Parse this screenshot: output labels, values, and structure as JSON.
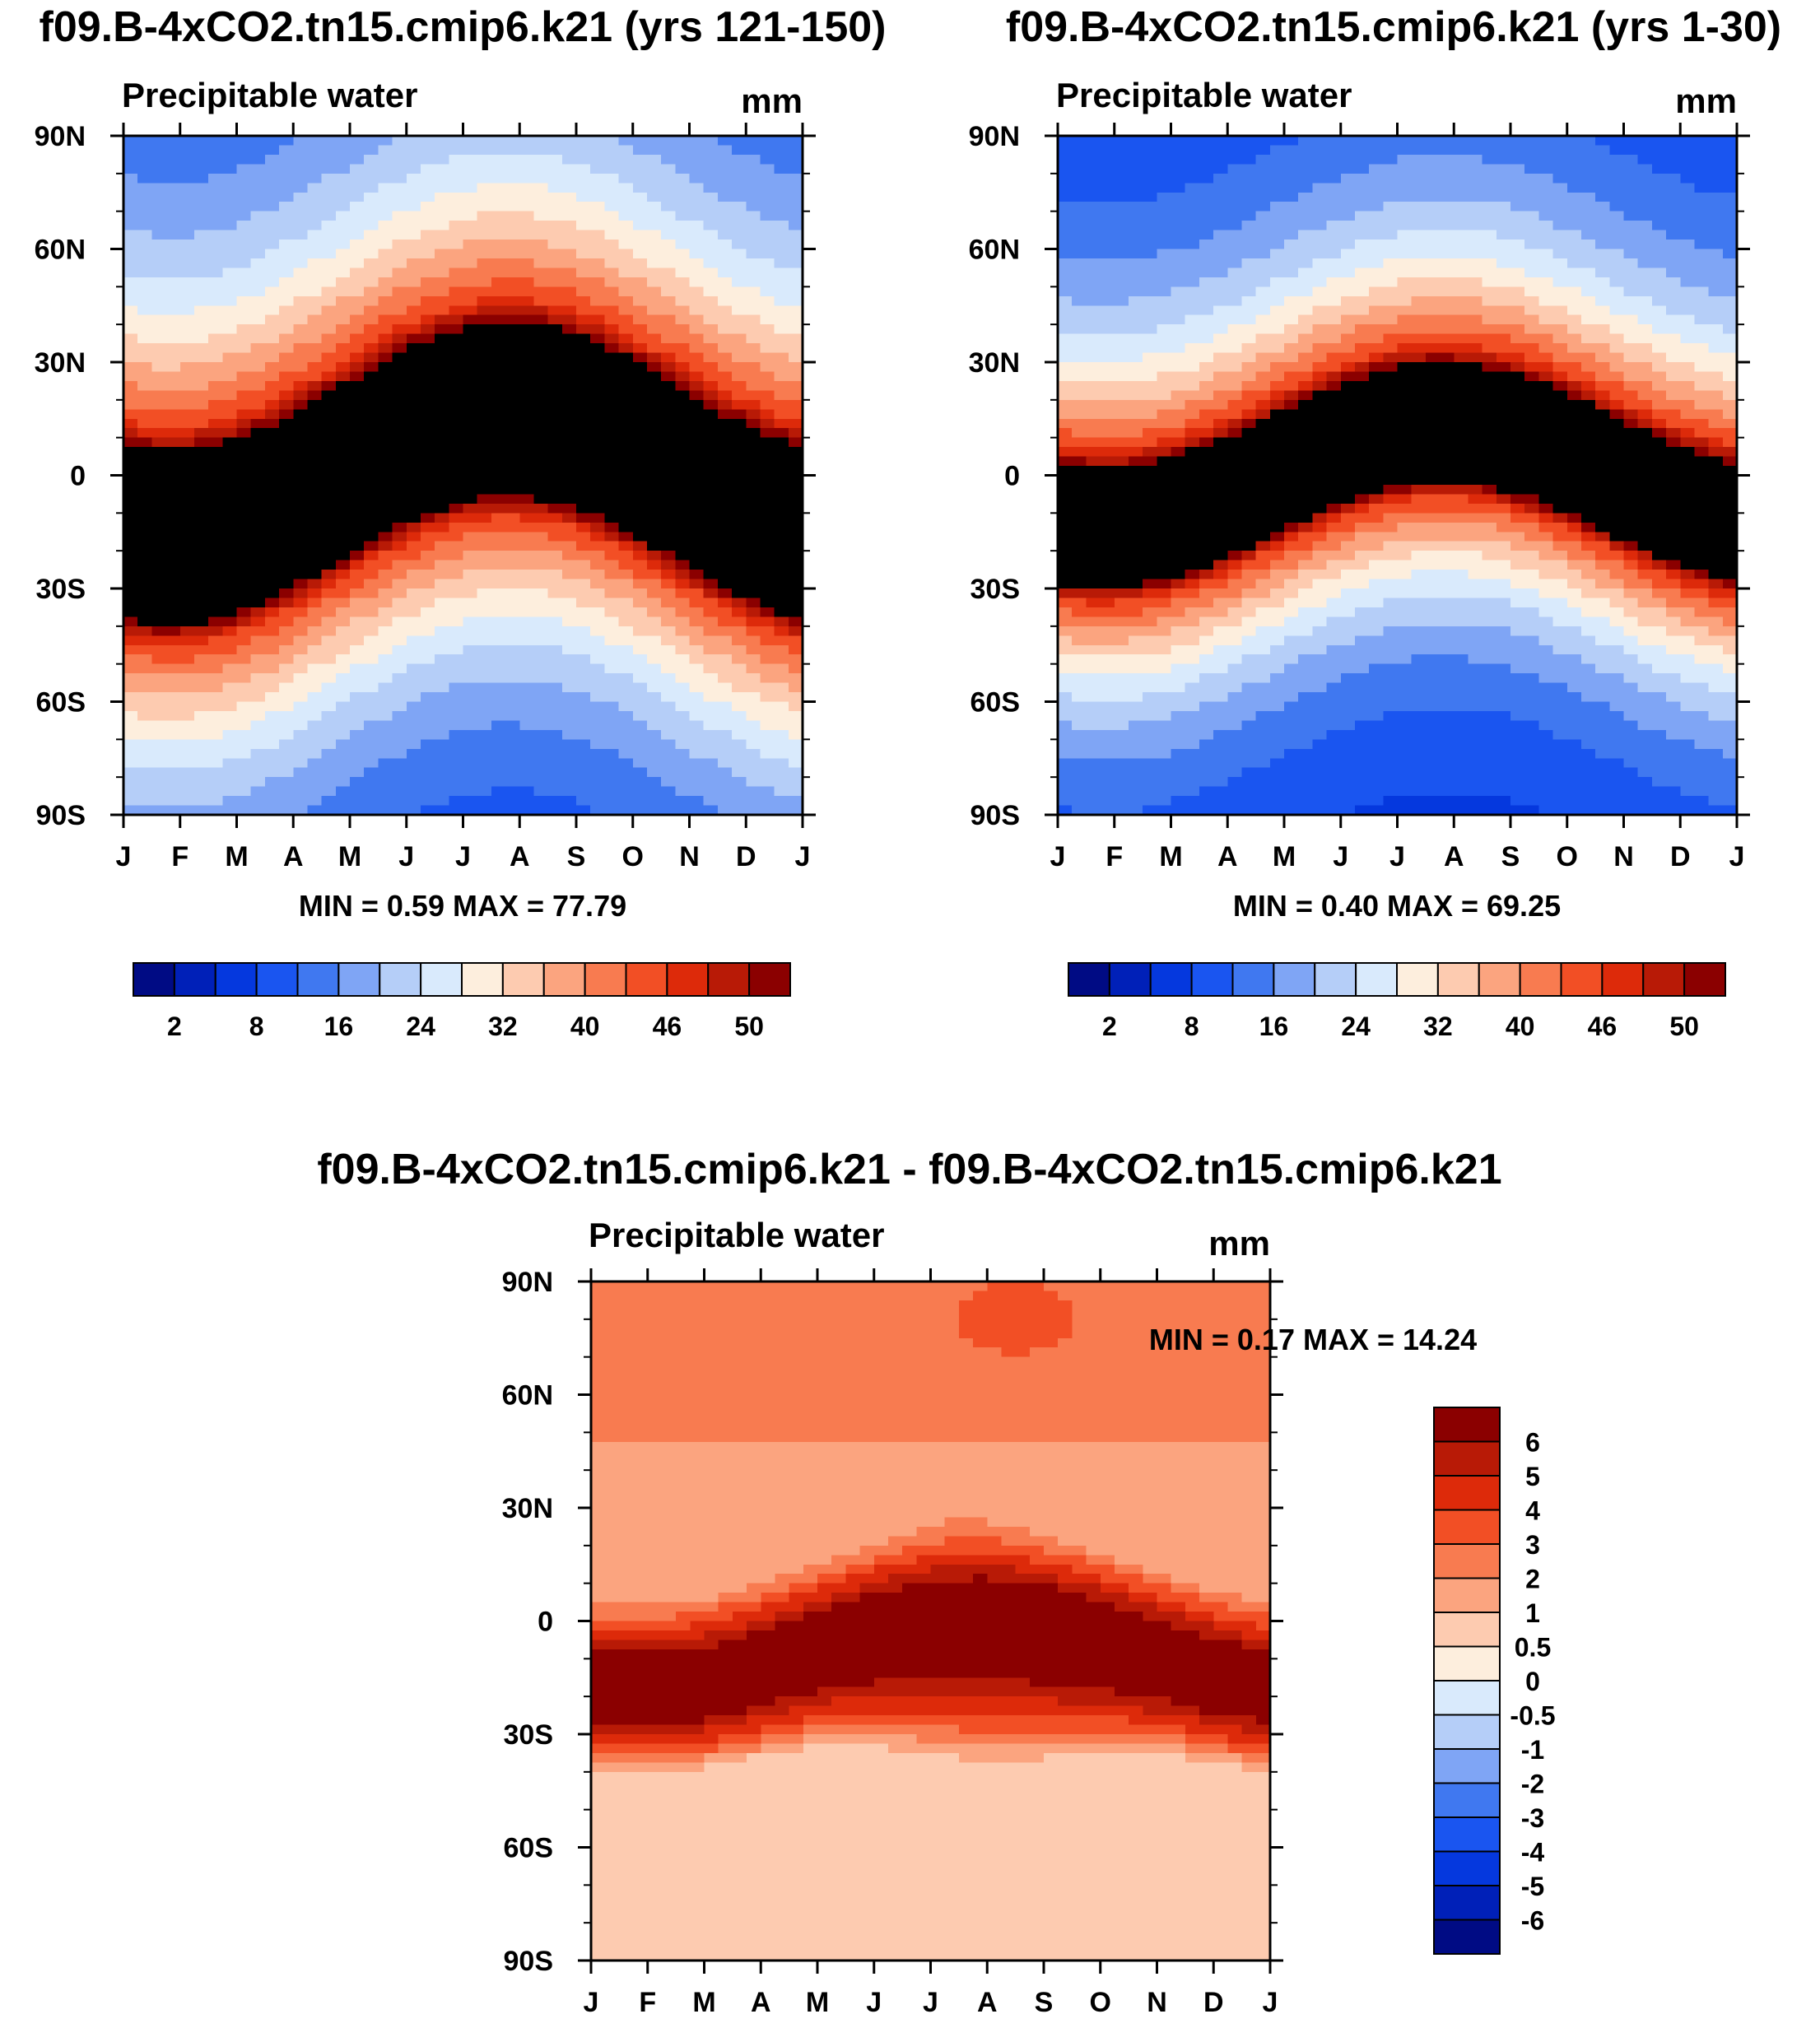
{
  "chart_data": [
    {
      "type": "heatmap",
      "title": "f09.B-4xCO2.tn15.cmip6.k21 (yrs 121-150)",
      "left_label": "Precipitable water",
      "units": "mm",
      "x_ticks": [
        "J",
        "F",
        "M",
        "A",
        "M",
        "J",
        "J",
        "A",
        "S",
        "O",
        "N",
        "D",
        "J"
      ],
      "y_ticks": [
        "90N",
        "60N",
        "30N",
        "0",
        "30S",
        "60S",
        "90S"
      ],
      "stats": {
        "min_label": "MIN =",
        "min": "0.59",
        "max_label": "MAX =",
        "max": "77.79"
      },
      "colorbar": {
        "orientation": "horizontal",
        "colors": [
          "#000b84",
          "#0020b8",
          "#0538de",
          "#1a55f0",
          "#4078f0",
          "#7fa5f5",
          "#b5cef8",
          "#d9eafc",
          "#fdeedd",
          "#fdcbb0",
          "#fba47f",
          "#f87b50",
          "#f24f25",
          "#dd2a0a",
          "#b81a06",
          "#8b0000"
        ],
        "labels": [
          "2",
          "8",
          "16",
          "24",
          "32",
          "40",
          "46",
          "50"
        ]
      },
      "field": {
        "kind": "abs",
        "eq_amp": 17,
        "core_half": 19,
        "peak": 56,
        "decay": 0.02,
        "diff": 0
      }
    },
    {
      "type": "heatmap",
      "title": "f09.B-4xCO2.tn15.cmip6.k21 (yrs 1-30)",
      "left_label": "Precipitable water",
      "units": "mm",
      "x_ticks": [
        "J",
        "F",
        "M",
        "A",
        "M",
        "J",
        "J",
        "A",
        "S",
        "O",
        "N",
        "D",
        "J"
      ],
      "y_ticks": [
        "90N",
        "60N",
        "30N",
        "0",
        "30S",
        "60S",
        "90S"
      ],
      "stats": {
        "min_label": "MIN =",
        "min": "0.40",
        "max_label": "MAX =",
        "max": "69.25"
      },
      "colorbar": {
        "orientation": "horizontal",
        "colors": [
          "#000b84",
          "#0020b8",
          "#0538de",
          "#1a55f0",
          "#4078f0",
          "#7fa5f5",
          "#b5cef8",
          "#d9eafc",
          "#fdeedd",
          "#fdcbb0",
          "#fba47f",
          "#f87b50",
          "#f24f25",
          "#dd2a0a",
          "#b81a06",
          "#8b0000"
        ],
        "labels": [
          "2",
          "8",
          "16",
          "24",
          "32",
          "40",
          "46",
          "50"
        ]
      },
      "field": {
        "kind": "abs",
        "eq_amp": 14,
        "core_half": 15,
        "peak": 52,
        "decay": 0.026,
        "diff": 0
      }
    },
    {
      "type": "heatmap",
      "title": "f09.B-4xCO2.tn15.cmip6.k21 - f09.B-4xCO2.tn15.cmip6.k21",
      "left_label": "Precipitable water",
      "units": "mm",
      "x_ticks": [
        "J",
        "F",
        "M",
        "A",
        "M",
        "J",
        "J",
        "A",
        "S",
        "O",
        "N",
        "D",
        "J"
      ],
      "y_ticks": [
        "90N",
        "60N",
        "30N",
        "0",
        "30S",
        "60S",
        "90S"
      ],
      "stats": {
        "min_label": "MIN =",
        "min": "0.17",
        "max_label": "MAX =",
        "max": "14.24"
      },
      "colorbar": {
        "orientation": "vertical",
        "colors": [
          "#000b84",
          "#0020b8",
          "#0538de",
          "#1a55f0",
          "#4078f0",
          "#7fa5f5",
          "#b5cef8",
          "#d9eafc",
          "#fdeedd",
          "#fdcbb0",
          "#fba47f",
          "#f87b50",
          "#f24f25",
          "#dd2a0a",
          "#b81a06",
          "#8b0000"
        ],
        "labels": [
          "-6",
          "-5",
          "-4",
          "-3",
          "-2",
          "-1",
          "-0.5",
          "0",
          "0.5",
          "1",
          "2",
          "3",
          "4",
          "5",
          "6"
        ]
      },
      "field": {
        "kind": "diff"
      }
    }
  ]
}
